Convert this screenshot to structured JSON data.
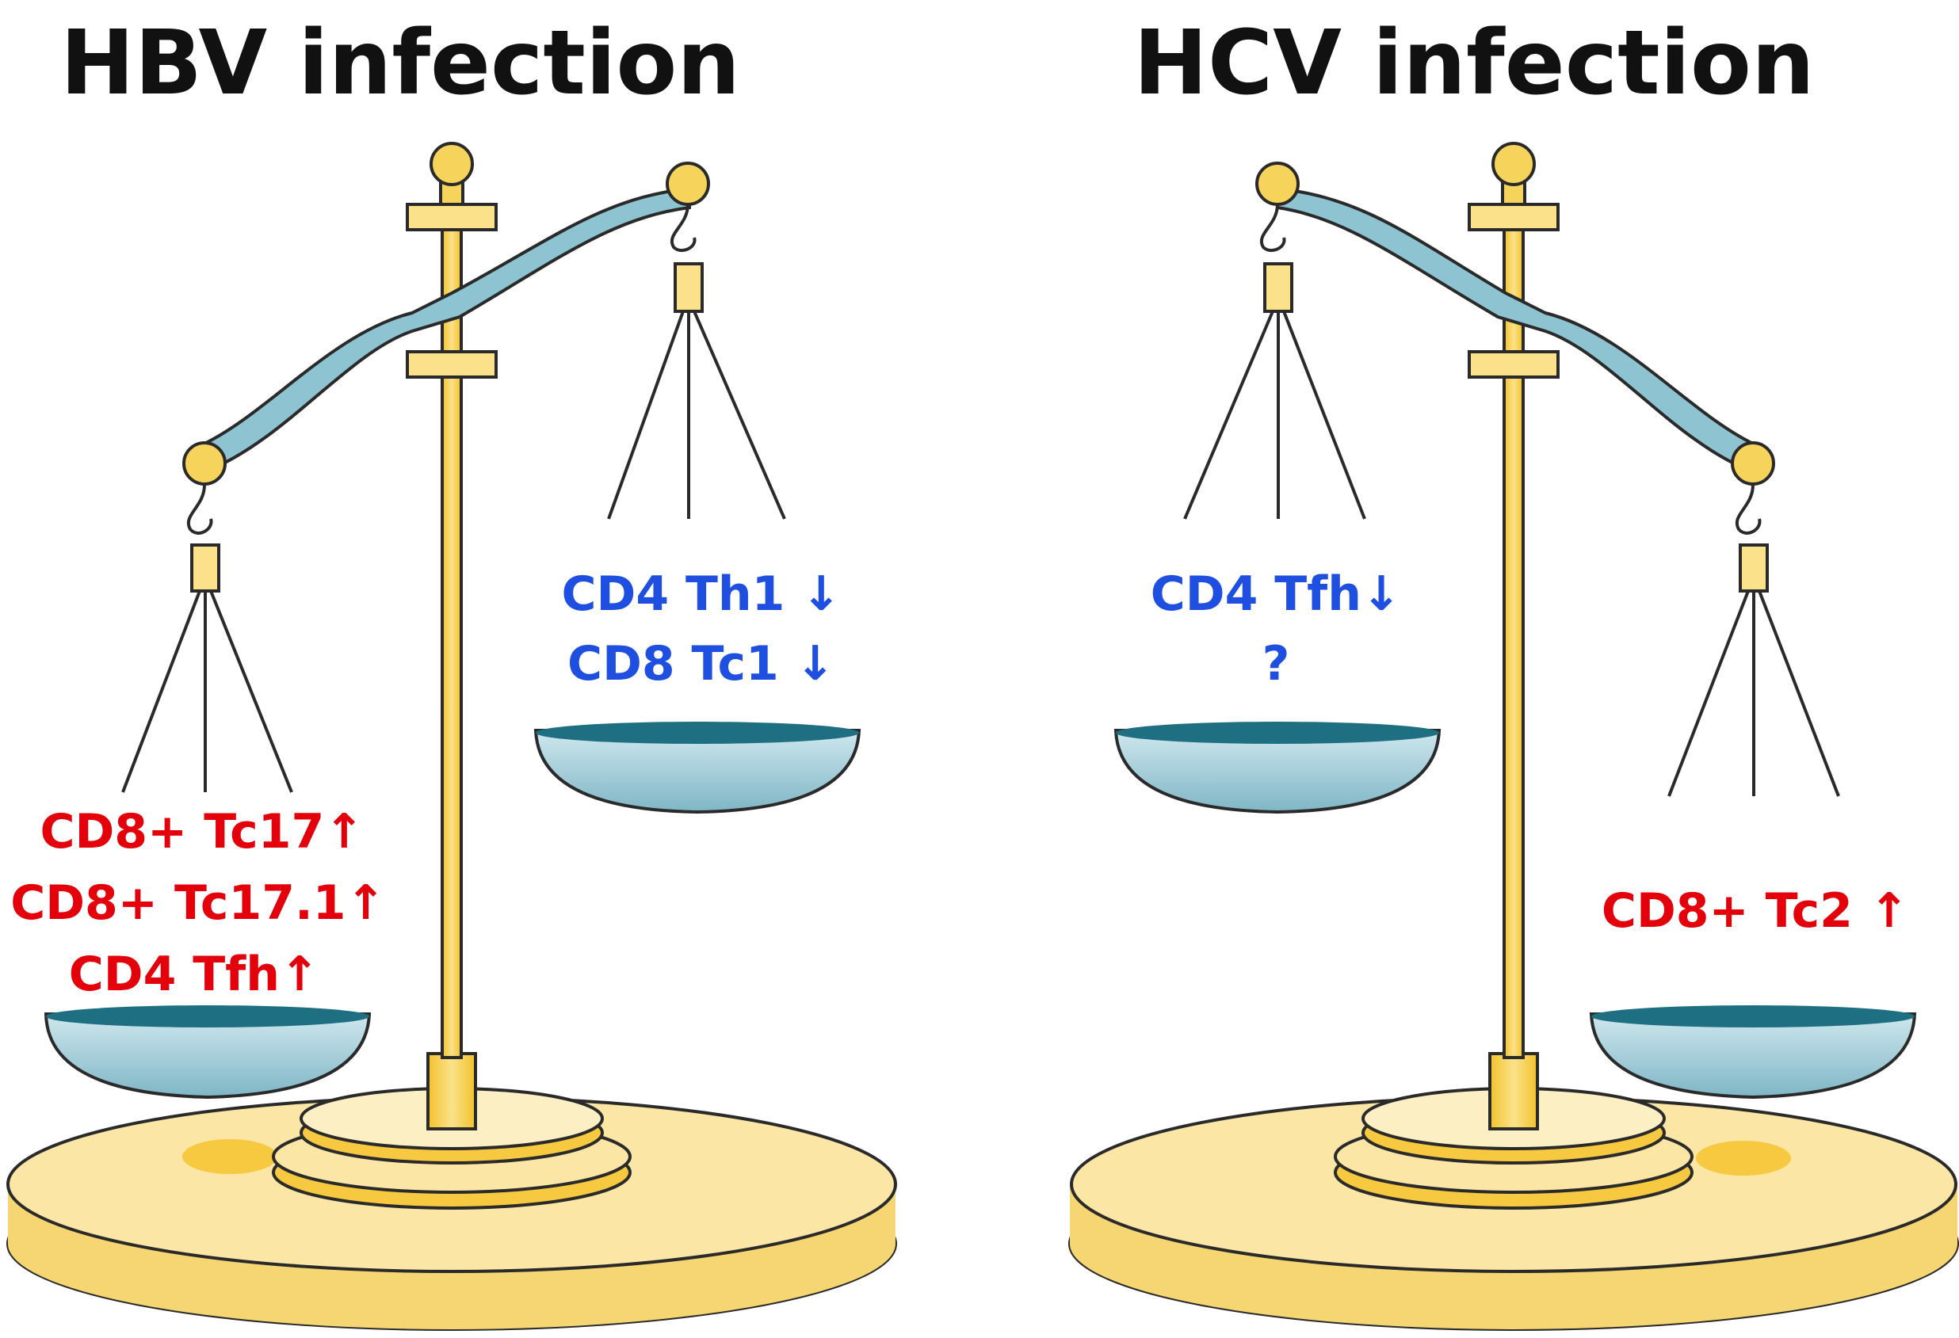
{
  "colors": {
    "increase": "#e3000b",
    "decrease": "#1f4fe0",
    "gold": "#f6d35a",
    "gold_dark": "#f2c22b",
    "base": "#fbe6a6",
    "beam": "#8ec4d2",
    "pan": "#9fcfdc",
    "pan_rim": "#1f6f82"
  },
  "panels": [
    {
      "title": "HBV infection",
      "left_pan": [
        "CD8+ Tc17↑",
        "CD8+ Tc17.1↑",
        "CD4 Tfh↑"
      ],
      "right_pan": [
        "CD4 Th1 ↓",
        "CD8 Tc1 ↓"
      ]
    },
    {
      "title": "HCV infection",
      "left_pan": [
        "CD4 Tfh↓",
        "?"
      ],
      "right_pan": [
        "CD8+ Tc2 ↑"
      ]
    }
  ]
}
